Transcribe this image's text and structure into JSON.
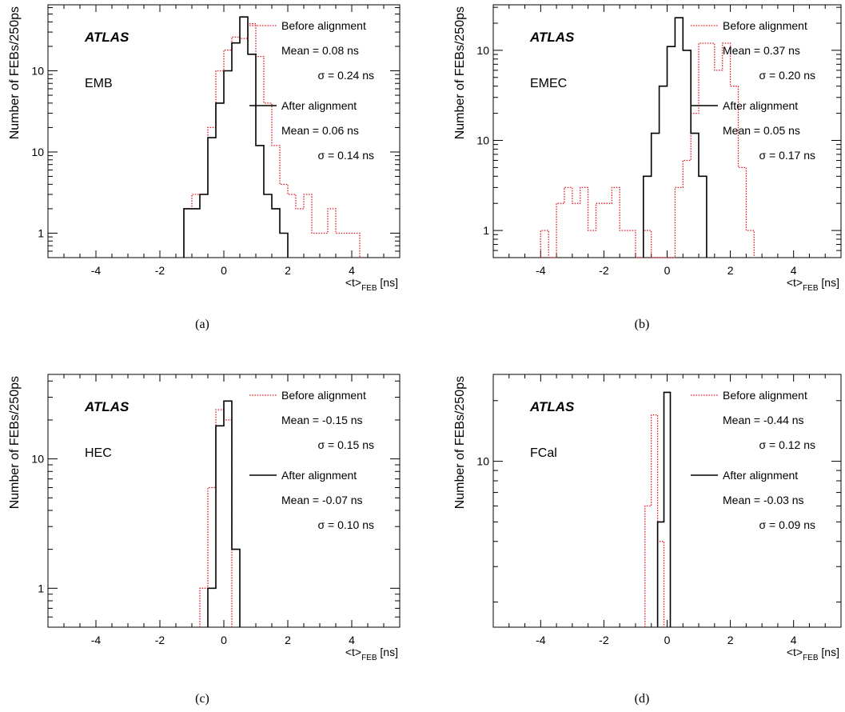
{
  "chart_data": [
    {
      "type": "histogram",
      "panel_label": "(a)",
      "experiment": "ATLAS",
      "region": "EMB",
      "xlabel_main": "<t>",
      "xlabel_sub": "FEB",
      "xlabel_unit": " [ns]",
      "ylabel": "Number of FEBs/250ps",
      "x_range": [
        -5.5,
        5.5
      ],
      "y_scale": "log",
      "y_range": [
        0.5,
        650
      ],
      "x_ticks": [
        -4,
        -2,
        0,
        2,
        4
      ],
      "y_ticks": [
        {
          "value": 1,
          "label": "1"
        },
        {
          "value": 10,
          "label": "10"
        },
        {
          "value": 100,
          "label": "10",
          "sup": "2"
        }
      ],
      "bin_width": 0.25,
      "series": [
        {
          "name": "Before alignment",
          "mean_text": "Mean = 0.08 ns",
          "sigma_text": "σ = 0.24 ns",
          "color": "#e0202a",
          "style": "dotted",
          "bin_start": -1.25,
          "values": [
            2,
            3,
            3,
            20,
            100,
            180,
            260,
            250,
            380,
            150,
            40,
            12,
            4,
            3,
            2,
            3,
            1,
            1,
            2,
            1,
            1,
            1
          ]
        },
        {
          "name": "After alignment",
          "mean_text": "Mean = 0.06 ns",
          "sigma_text": "σ = 0.14 ns",
          "color": "#000000",
          "style": "solid",
          "bin_start": -1.25,
          "values": [
            2,
            2,
            3,
            15,
            40,
            100,
            220,
            460,
            160,
            12,
            3,
            2,
            1
          ]
        }
      ]
    },
    {
      "type": "histogram",
      "panel_label": "(b)",
      "experiment": "ATLAS",
      "region": "EMEC",
      "xlabel_main": "<t>",
      "xlabel_sub": "FEB",
      "xlabel_unit": " [ns]",
      "ylabel": "Number of FEBs/250ps",
      "x_range": [
        -5.5,
        5.5
      ],
      "y_scale": "log",
      "y_range": [
        0.5,
        320
      ],
      "x_ticks": [
        -4,
        -2,
        0,
        2,
        4
      ],
      "y_ticks": [
        {
          "value": 1,
          "label": "1"
        },
        {
          "value": 10,
          "label": "10"
        },
        {
          "value": 100,
          "label": "10",
          "sup": "2"
        }
      ],
      "bin_width": 0.25,
      "series": [
        {
          "name": "Before alignment",
          "mean_text": "Mean = 0.37 ns",
          "sigma_text": "σ = 0.20 ns",
          "color": "#e0202a",
          "style": "dotted",
          "bin_start": -4.0,
          "values": [
            1,
            0,
            2,
            3,
            2,
            3,
            1,
            2,
            2,
            3,
            1,
            1,
            0,
            1,
            0,
            0,
            0,
            3,
            6,
            20,
            120,
            120,
            60,
            120,
            40,
            5,
            1
          ]
        },
        {
          "name": "After alignment",
          "mean_text": "Mean = 0.05 ns",
          "sigma_text": "σ = 0.17 ns",
          "color": "#000000",
          "style": "solid",
          "bin_start": -0.75,
          "values": [
            4,
            12,
            40,
            110,
            230,
            100,
            12,
            4
          ]
        }
      ]
    },
    {
      "type": "histogram",
      "panel_label": "(c)",
      "experiment": "ATLAS",
      "region": "HEC",
      "xlabel_main": "<t>",
      "xlabel_sub": "FEB",
      "xlabel_unit": " [ns]",
      "ylabel": "Number of FEBs/250ps",
      "x_range": [
        -5.5,
        5.5
      ],
      "y_scale": "log",
      "y_range": [
        0.5,
        45
      ],
      "x_ticks": [
        -4,
        -2,
        0,
        2,
        4
      ],
      "y_ticks": [
        {
          "value": 1,
          "label": "1"
        },
        {
          "value": 10,
          "label": "10"
        }
      ],
      "bin_width": 0.25,
      "series": [
        {
          "name": "Before alignment",
          "mean_text": "Mean = -0.15 ns",
          "sigma_text": "σ = 0.15 ns",
          "color": "#e0202a",
          "style": "dotted",
          "bin_start": -0.75,
          "values": [
            1,
            6,
            24,
            20
          ]
        },
        {
          "name": "After alignment",
          "mean_text": "Mean = -0.07 ns",
          "sigma_text": "σ = 0.10 ns",
          "color": "#000000",
          "style": "solid",
          "bin_start": -0.5,
          "values": [
            1,
            18,
            28,
            2
          ]
        }
      ]
    },
    {
      "type": "histogram",
      "panel_label": "(d)",
      "experiment": "ATLAS",
      "region": "FCal",
      "xlabel_main": "<t>",
      "xlabel_sub": "FEB",
      "xlabel_unit": " [ns]",
      "ylabel": "Number of FEBs/250ps",
      "x_range": [
        -5.5,
        5.5
      ],
      "y_scale": "log",
      "y_range": [
        1.5,
        27
      ],
      "x_ticks": [
        -4,
        -2,
        0,
        2,
        4
      ],
      "y_ticks": [
        {
          "value": 10,
          "label": "10"
        }
      ],
      "bin_width": 0.2,
      "series": [
        {
          "name": "Before alignment",
          "mean_text": "Mean = -0.44 ns",
          "sigma_text": "σ = 0.12 ns",
          "color": "#e0202a",
          "style": "dotted",
          "bin_start": -0.7,
          "values": [
            6,
            17,
            4
          ]
        },
        {
          "name": "After alignment",
          "mean_text": "Mean = -0.03 ns",
          "sigma_text": "σ = 0.09 ns",
          "color": "#000000",
          "style": "solid",
          "bin_start": -0.3,
          "values": [
            5,
            22
          ]
        }
      ]
    }
  ]
}
